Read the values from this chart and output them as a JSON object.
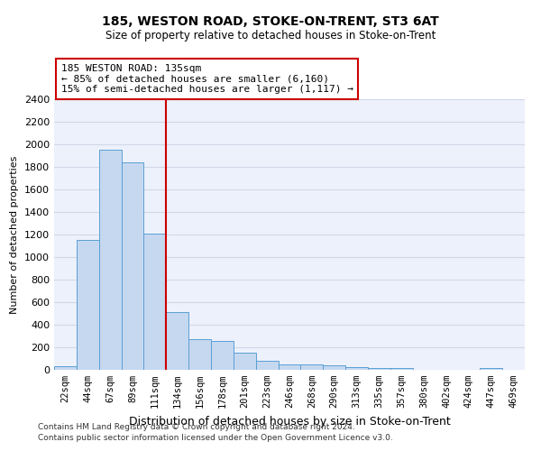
{
  "title": "185, WESTON ROAD, STOKE-ON-TRENT, ST3 6AT",
  "subtitle": "Size of property relative to detached houses in Stoke-on-Trent",
  "xlabel": "Distribution of detached houses by size in Stoke-on-Trent",
  "ylabel": "Number of detached properties",
  "footer1": "Contains HM Land Registry data © Crown copyright and database right 2024.",
  "footer2": "Contains public sector information licensed under the Open Government Licence v3.0.",
  "annotation_line1": "185 WESTON ROAD: 135sqm",
  "annotation_line2": "← 85% of detached houses are smaller (6,160)",
  "annotation_line3": "15% of semi-detached houses are larger (1,117) →",
  "bar_color": "#c5d8f0",
  "bar_edge_color": "#5a9fd4",
  "vline_color": "#cc0000",
  "annotation_box_edgecolor": "#cc0000",
  "categories": [
    "22sqm",
    "44sqm",
    "67sqm",
    "89sqm",
    "111sqm",
    "134sqm",
    "156sqm",
    "178sqm",
    "201sqm",
    "223sqm",
    "246sqm",
    "268sqm",
    "290sqm",
    "313sqm",
    "335sqm",
    "357sqm",
    "380sqm",
    "402sqm",
    "424sqm",
    "447sqm",
    "469sqm"
  ],
  "values": [
    30,
    1150,
    1950,
    1840,
    1210,
    510,
    270,
    260,
    155,
    80,
    50,
    45,
    40,
    25,
    20,
    15,
    0,
    0,
    0,
    20,
    0
  ],
  "vline_index": 5,
  "ylim": [
    0,
    2400
  ],
  "yticks": [
    0,
    200,
    400,
    600,
    800,
    1000,
    1200,
    1400,
    1600,
    1800,
    2000,
    2200,
    2400
  ],
  "bg_color": "#edf1fb",
  "grid_color": "#d0d8e8",
  "title_fontsize": 10,
  "subtitle_fontsize": 8.5,
  "ylabel_fontsize": 8,
  "xlabel_fontsize": 9,
  "annotation_fontsize": 8,
  "tick_fontsize": 7.5,
  "ytick_fontsize": 8
}
